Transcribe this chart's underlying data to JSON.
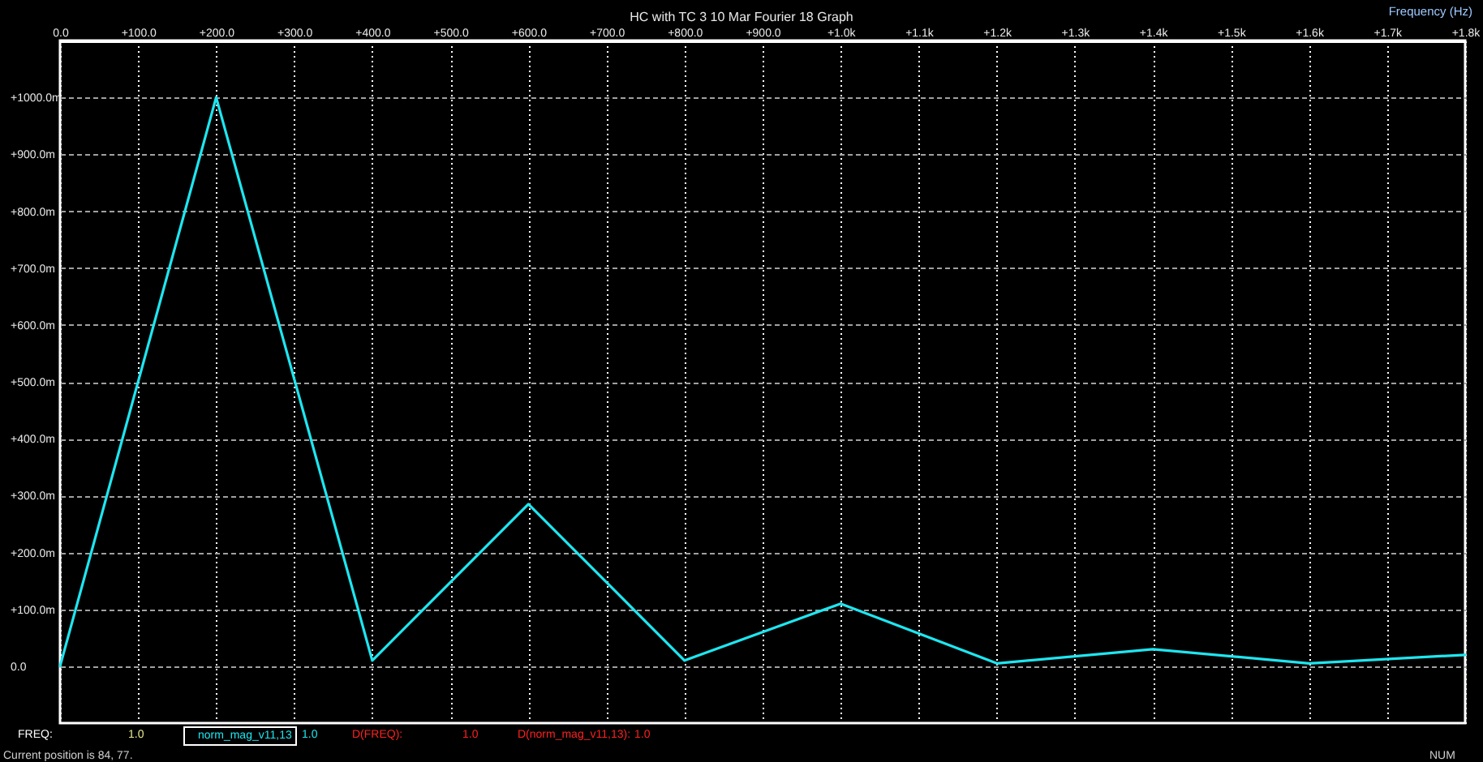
{
  "chart_data": {
    "type": "line",
    "title": "HC with TC 3 10 Mar Fourier 18 Graph",
    "xlabel": "Frequency (Hz)",
    "x": [
      0,
      200,
      400,
      600,
      800,
      1000,
      1200,
      1400,
      1600,
      1800
    ],
    "series": [
      {
        "name": "norm_mag_v11,13",
        "color": "#1ee6f0",
        "values": [
          0,
          1000,
          10,
          285,
          10,
          110,
          5,
          30,
          5,
          20
        ]
      }
    ],
    "xlim": [
      0,
      1800
    ],
    "xticks": [
      {
        "value": 0,
        "label": "0.0"
      },
      {
        "value": 100,
        "label": "+100.0"
      },
      {
        "value": 200,
        "label": "+200.0"
      },
      {
        "value": 300,
        "label": "+300.0"
      },
      {
        "value": 400,
        "label": "+400.0"
      },
      {
        "value": 500,
        "label": "+500.0"
      },
      {
        "value": 600,
        "label": "+600.0"
      },
      {
        "value": 700,
        "label": "+700.0"
      },
      {
        "value": 800,
        "label": "+800.0"
      },
      {
        "value": 900,
        "label": "+900.0"
      },
      {
        "value": 1000,
        "label": "+1.0k"
      },
      {
        "value": 1100,
        "label": "+1.1k"
      },
      {
        "value": 1200,
        "label": "+1.2k"
      },
      {
        "value": 1300,
        "label": "+1.3k"
      },
      {
        "value": 1400,
        "label": "+1.4k"
      },
      {
        "value": 1500,
        "label": "+1.5k"
      },
      {
        "value": 1600,
        "label": "+1.6k"
      },
      {
        "value": 1700,
        "label": "+1.7k"
      },
      {
        "value": 1800,
        "label": "+1.8k"
      }
    ],
    "ylim": [
      -100,
      1100
    ],
    "yticks": [
      {
        "value": 0,
        "label": "0.0"
      },
      {
        "value": 100,
        "label": "+100.0m"
      },
      {
        "value": 200,
        "label": "+200.0m"
      },
      {
        "value": 300,
        "label": "+300.0m"
      },
      {
        "value": 400,
        "label": "+400.0m"
      },
      {
        "value": 500,
        "label": "+500.0m"
      },
      {
        "value": 600,
        "label": "+600.0m"
      },
      {
        "value": 700,
        "label": "+700.0m"
      },
      {
        "value": 800,
        "label": "+800.0m"
      },
      {
        "value": 900,
        "label": "+900.0m"
      },
      {
        "value": 1000,
        "label": "+1000.0m"
      }
    ],
    "grid": true,
    "legend": "bottom left",
    "line_style": "solid",
    "annotations": [
      "FREQ:",
      "1.0",
      "1.0",
      "D(FREQ):",
      "1.0",
      "D(norm_mag_v11,13):",
      "1.0",
      "Current position is 84, 77.",
      "NUM"
    ]
  }
}
